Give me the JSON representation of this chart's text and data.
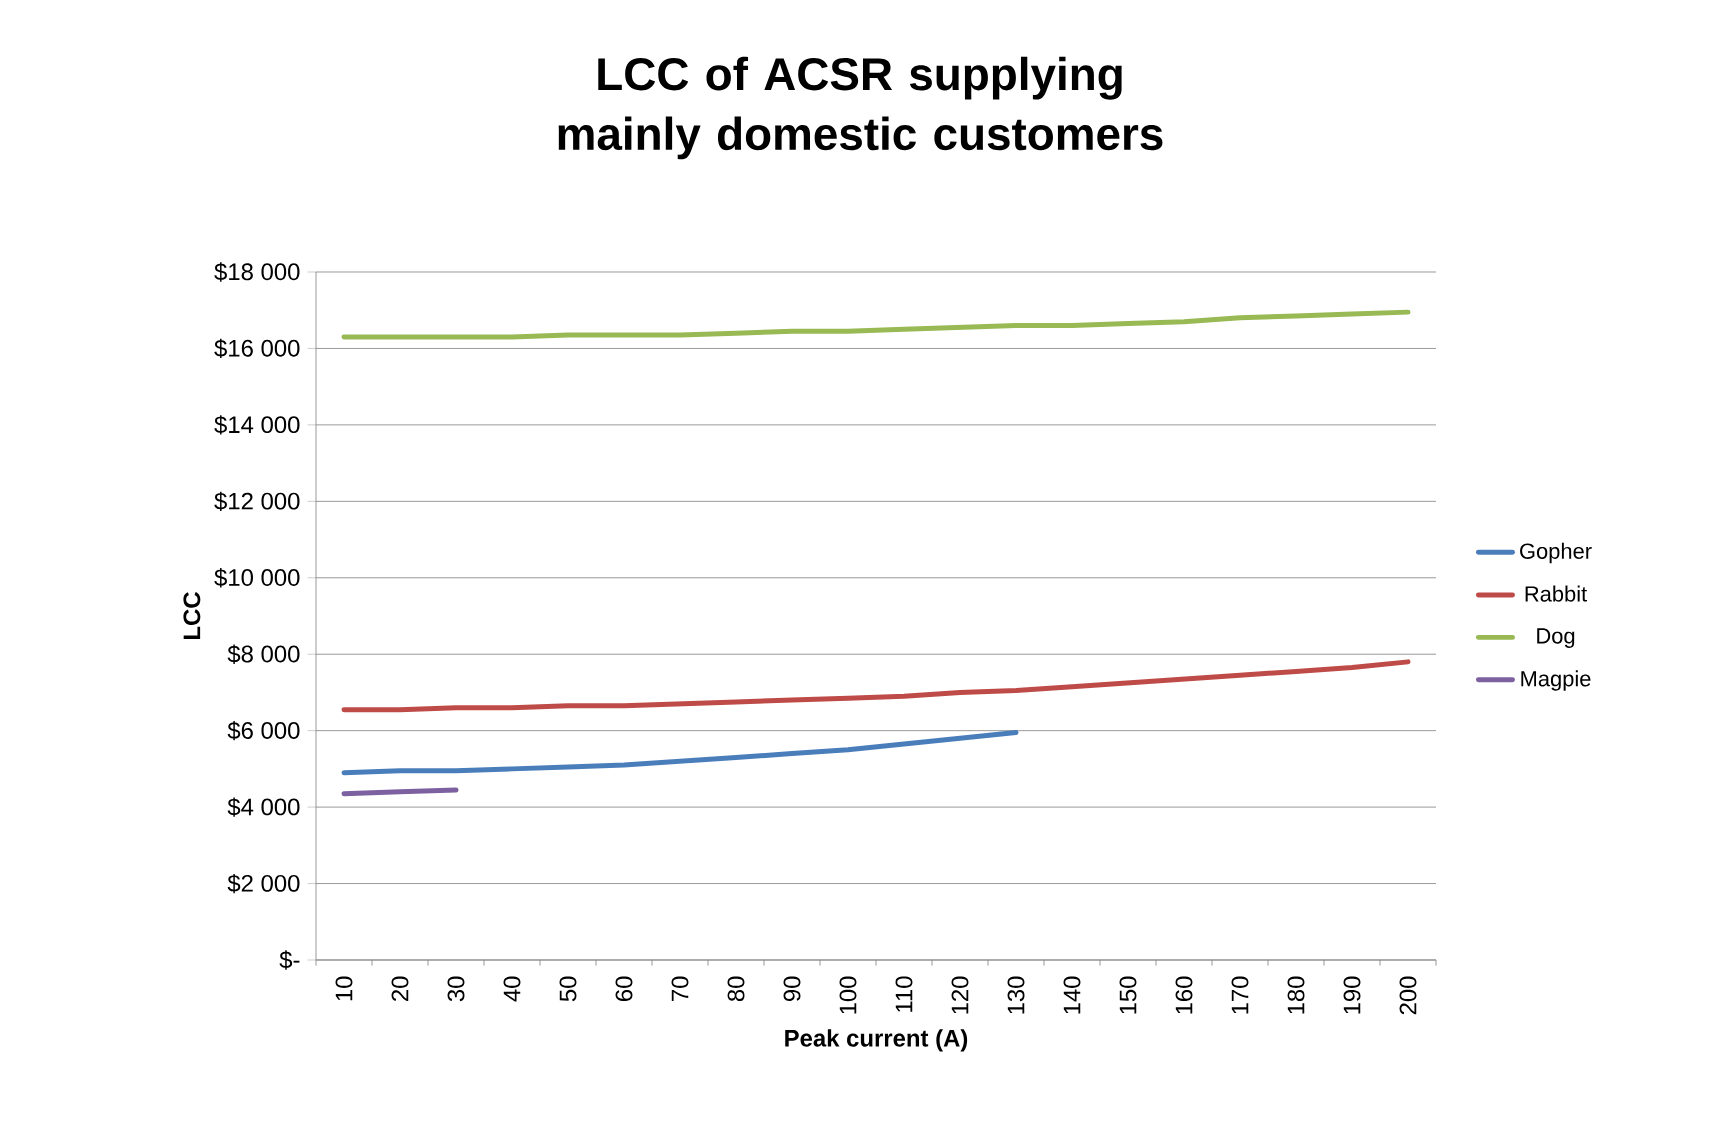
{
  "chart_data": {
    "type": "line",
    "title": "LCC of ACSR supplying mainly domestic customers",
    "xlabel": "Peak current (A)",
    "ylabel": "LCC",
    "categories": [
      "10",
      "20",
      "30",
      "40",
      "50",
      "60",
      "70",
      "80",
      "90",
      "100",
      "110",
      "120",
      "130",
      "140",
      "150",
      "160",
      "170",
      "180",
      "190",
      "200"
    ],
    "series": [
      {
        "name": "Gopher",
        "color": "#4a7ebb",
        "values": [
          4900,
          4950,
          4950,
          5000,
          5050,
          5100,
          5200,
          5300,
          5400,
          5500,
          5650,
          5800,
          5950,
          null,
          null,
          null,
          null,
          null,
          null,
          null
        ]
      },
      {
        "name": "Rabbit",
        "color": "#be4b48",
        "values": [
          6550,
          6550,
          6600,
          6600,
          6650,
          6650,
          6700,
          6750,
          6800,
          6850,
          6900,
          7000,
          7050,
          7150,
          7250,
          7350,
          7450,
          7550,
          7650,
          7800
        ]
      },
      {
        "name": "Dog",
        "color": "#98b954",
        "values": [
          16300,
          16300,
          16300,
          16300,
          16350,
          16350,
          16350,
          16400,
          16450,
          16450,
          16500,
          16550,
          16600,
          16600,
          16650,
          16700,
          16800,
          16850,
          16900,
          16950
        ]
      },
      {
        "name": "Magpie",
        "color": "#7d60a0",
        "values": [
          4350,
          4400,
          4450,
          null,
          null,
          null,
          null,
          null,
          null,
          null,
          null,
          null,
          null,
          null,
          null,
          null,
          null,
          null,
          null,
          null
        ]
      }
    ],
    "ylim": [
      0,
      18000
    ],
    "yticks": [
      {
        "value": 0,
        "label": "$-"
      },
      {
        "value": 2000,
        "label": "$2 000"
      },
      {
        "value": 4000,
        "label": "$4 000"
      },
      {
        "value": 6000,
        "label": "$6 000"
      },
      {
        "value": 8000,
        "label": "$8 000"
      },
      {
        "value": 10000,
        "label": "$10 000"
      },
      {
        "value": 12000,
        "label": "$12 000"
      },
      {
        "value": 14000,
        "label": "$14 000"
      },
      {
        "value": 16000,
        "label": "$16 000"
      },
      {
        "value": 18000,
        "label": "$18 000"
      }
    ],
    "grid": "y",
    "legend": "right",
    "marker": "none",
    "line_style": "solid"
  }
}
